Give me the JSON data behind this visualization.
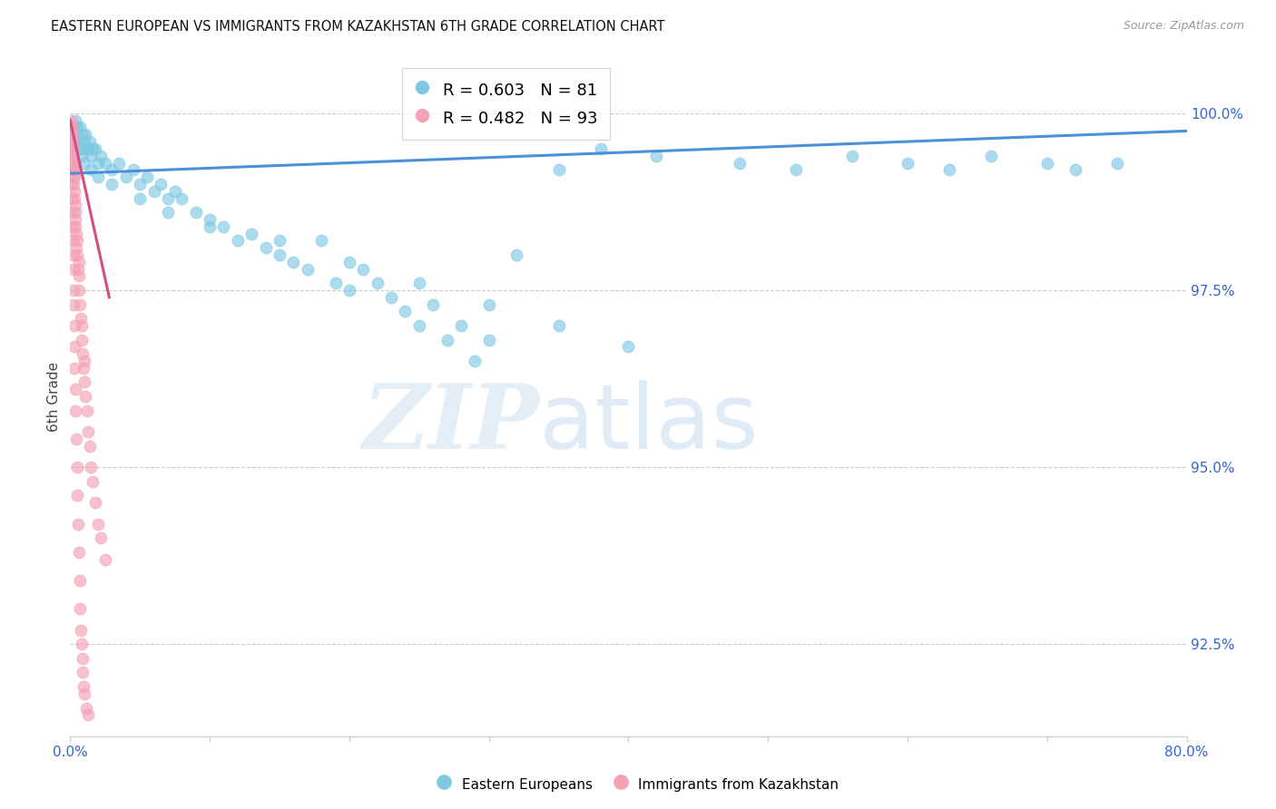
{
  "title": "EASTERN EUROPEAN VS IMMIGRANTS FROM KAZAKHSTAN 6TH GRADE CORRELATION CHART",
  "source": "Source: ZipAtlas.com",
  "ylabel": "6th Grade",
  "yticks": [
    92.5,
    95.0,
    97.5,
    100.0
  ],
  "ytick_labels": [
    "92.5%",
    "95.0%",
    "97.5%",
    "100.0%"
  ],
  "xmin": 0.0,
  "xmax": 80.0,
  "ymin": 91.2,
  "ymax": 100.8,
  "legend1_label": "R = 0.603   N = 81",
  "legend2_label": "R = 0.482   N = 93",
  "blue_color": "#7ec8e3",
  "pink_color": "#f4a0b5",
  "trend_blue": "#4a90d9",
  "trend_pink": "#d05080",
  "blue_scatter_x": [
    0.3,
    0.4,
    0.5,
    0.5,
    0.6,
    0.7,
    0.8,
    0.9,
    1.0,
    1.1,
    1.2,
    1.3,
    1.4,
    1.5,
    1.6,
    1.8,
    2.0,
    2.2,
    2.5,
    3.0,
    3.5,
    4.0,
    4.5,
    5.0,
    5.5,
    6.0,
    6.5,
    7.0,
    7.5,
    8.0,
    9.0,
    10.0,
    11.0,
    12.0,
    13.0,
    14.0,
    15.0,
    16.0,
    17.0,
    18.0,
    19.0,
    20.0,
    21.0,
    22.0,
    23.0,
    24.0,
    25.0,
    26.0,
    27.0,
    28.0,
    29.0,
    30.0,
    32.0,
    35.0,
    38.0,
    42.0,
    48.0,
    52.0,
    56.0,
    60.0,
    63.0,
    66.0,
    70.0,
    72.0,
    75.0,
    0.4,
    0.6,
    0.8,
    1.0,
    1.5,
    2.0,
    3.0,
    5.0,
    7.0,
    10.0,
    15.0,
    20.0,
    25.0,
    30.0,
    35.0,
    40.0
  ],
  "blue_scatter_y": [
    99.8,
    99.9,
    99.7,
    99.8,
    99.6,
    99.8,
    99.5,
    99.7,
    99.6,
    99.7,
    99.5,
    99.5,
    99.6,
    99.4,
    99.5,
    99.5,
    99.3,
    99.4,
    99.3,
    99.2,
    99.3,
    99.1,
    99.2,
    99.0,
    99.1,
    98.9,
    99.0,
    98.8,
    98.9,
    98.8,
    98.6,
    98.5,
    98.4,
    98.2,
    98.3,
    98.1,
    98.0,
    97.9,
    97.8,
    98.2,
    97.6,
    97.5,
    97.8,
    97.6,
    97.4,
    97.2,
    97.0,
    97.3,
    96.8,
    97.0,
    96.5,
    96.8,
    98.0,
    99.2,
    99.5,
    99.4,
    99.3,
    99.2,
    99.4,
    99.3,
    99.2,
    99.4,
    99.3,
    99.2,
    99.3,
    99.6,
    99.5,
    99.4,
    99.3,
    99.2,
    99.1,
    99.0,
    98.8,
    98.6,
    98.4,
    98.2,
    97.9,
    97.6,
    97.3,
    97.0,
    96.7
  ],
  "pink_scatter_x": [
    0.05,
    0.05,
    0.05,
    0.05,
    0.05,
    0.05,
    0.08,
    0.08,
    0.08,
    0.1,
    0.1,
    0.1,
    0.1,
    0.1,
    0.12,
    0.12,
    0.15,
    0.15,
    0.15,
    0.18,
    0.18,
    0.2,
    0.2,
    0.2,
    0.22,
    0.25,
    0.25,
    0.28,
    0.3,
    0.3,
    0.35,
    0.35,
    0.4,
    0.4,
    0.45,
    0.45,
    0.5,
    0.5,
    0.55,
    0.6,
    0.6,
    0.65,
    0.7,
    0.75,
    0.8,
    0.85,
    0.9,
    0.95,
    1.0,
    1.0,
    1.1,
    1.2,
    1.3,
    1.4,
    1.5,
    1.6,
    1.8,
    2.0,
    2.2,
    2.5,
    0.06,
    0.07,
    0.09,
    0.11,
    0.13,
    0.14,
    0.16,
    0.17,
    0.19,
    0.21,
    0.23,
    0.26,
    0.27,
    0.29,
    0.32,
    0.33,
    0.36,
    0.38,
    0.42,
    0.48,
    0.52,
    0.58,
    0.62,
    0.68,
    0.72,
    0.78,
    0.82,
    0.88,
    0.92,
    0.98,
    1.05,
    1.15,
    1.25
  ],
  "pink_scatter_y": [
    99.9,
    99.8,
    99.7,
    99.6,
    99.5,
    99.4,
    99.7,
    99.6,
    99.5,
    99.8,
    99.7,
    99.6,
    99.5,
    99.4,
    99.5,
    99.3,
    99.6,
    99.5,
    99.4,
    99.3,
    99.2,
    99.4,
    99.3,
    99.2,
    99.1,
    99.2,
    99.0,
    98.9,
    99.1,
    98.8,
    98.7,
    98.5,
    98.6,
    98.4,
    98.3,
    98.1,
    98.2,
    98.0,
    97.8,
    97.9,
    97.7,
    97.5,
    97.3,
    97.1,
    97.0,
    96.8,
    96.6,
    96.4,
    96.5,
    96.2,
    96.0,
    95.8,
    95.5,
    95.3,
    95.0,
    94.8,
    94.5,
    94.2,
    94.0,
    93.7,
    99.6,
    99.4,
    99.3,
    99.2,
    99.0,
    98.8,
    98.6,
    98.4,
    98.2,
    98.0,
    97.8,
    97.5,
    97.3,
    97.0,
    96.7,
    96.4,
    96.1,
    95.8,
    95.4,
    95.0,
    94.6,
    94.2,
    93.8,
    93.4,
    93.0,
    92.7,
    92.5,
    92.3,
    92.1,
    91.9,
    91.8,
    91.6,
    91.5
  ]
}
